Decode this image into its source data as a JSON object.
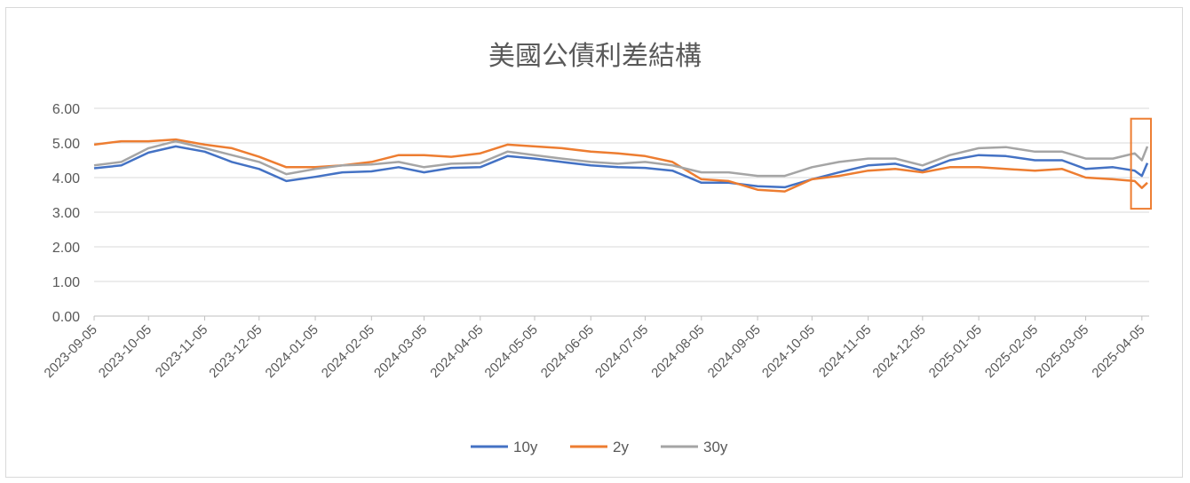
{
  "chart_data": {
    "type": "line",
    "title": "美國公債利差結構",
    "xlabel": "",
    "ylabel": "",
    "ylim": [
      0,
      6
    ],
    "yticks": [
      "0.00",
      "1.00",
      "2.00",
      "3.00",
      "4.00",
      "5.00",
      "6.00"
    ],
    "grid": "horizontal",
    "legend_position": "bottom",
    "x_tick_labels": [
      "2023-09-05",
      "2023-10-05",
      "2023-11-05",
      "2023-12-05",
      "2024-01-05",
      "2024-02-05",
      "2024-03-05",
      "2024-04-05",
      "2024-05-05",
      "2024-06-05",
      "2024-07-05",
      "2024-08-05",
      "2024-09-05",
      "2024-10-05",
      "2024-11-05",
      "2024-12-05",
      "2025-01-05",
      "2025-02-05",
      "2025-03-05",
      "2025-04-05"
    ],
    "x": [
      "2023-09-05",
      "2023-09-20",
      "2023-10-05",
      "2023-10-20",
      "2023-11-05",
      "2023-11-20",
      "2023-12-05",
      "2023-12-20",
      "2024-01-05",
      "2024-01-20",
      "2024-02-05",
      "2024-02-20",
      "2024-03-05",
      "2024-03-20",
      "2024-04-05",
      "2024-04-20",
      "2024-05-05",
      "2024-05-20",
      "2024-06-05",
      "2024-06-20",
      "2024-07-05",
      "2024-07-20",
      "2024-08-05",
      "2024-08-20",
      "2024-09-05",
      "2024-09-20",
      "2024-10-05",
      "2024-10-20",
      "2024-11-05",
      "2024-11-20",
      "2024-12-05",
      "2024-12-20",
      "2025-01-05",
      "2025-01-20",
      "2025-02-05",
      "2025-02-20",
      "2025-03-05",
      "2025-03-20",
      "2025-04-01",
      "2025-04-05",
      "2025-04-08"
    ],
    "series": [
      {
        "name": "10y",
        "color": "#4472c4",
        "values": [
          4.27,
          4.35,
          4.72,
          4.9,
          4.75,
          4.45,
          4.25,
          3.9,
          4.02,
          4.15,
          4.18,
          4.3,
          4.15,
          4.28,
          4.3,
          4.62,
          4.55,
          4.45,
          4.35,
          4.3,
          4.28,
          4.2,
          3.85,
          3.85,
          3.75,
          3.72,
          3.95,
          4.15,
          4.35,
          4.4,
          4.2,
          4.5,
          4.65,
          4.62,
          4.5,
          4.5,
          4.25,
          4.3,
          4.2,
          4.05,
          4.42
        ]
      },
      {
        "name": "2y",
        "color": "#ed7d31",
        "values": [
          4.95,
          5.05,
          5.05,
          5.1,
          4.95,
          4.85,
          4.6,
          4.3,
          4.3,
          4.35,
          4.45,
          4.65,
          4.65,
          4.6,
          4.7,
          4.95,
          4.9,
          4.85,
          4.75,
          4.7,
          4.62,
          4.45,
          3.95,
          3.9,
          3.65,
          3.6,
          3.95,
          4.05,
          4.2,
          4.25,
          4.15,
          4.3,
          4.3,
          4.25,
          4.2,
          4.25,
          4.0,
          3.95,
          3.9,
          3.7,
          3.85
        ]
      },
      {
        "name": "30y",
        "color": "#a5a5a5",
        "values": [
          4.35,
          4.45,
          4.85,
          5.05,
          4.85,
          4.65,
          4.45,
          4.1,
          4.25,
          4.35,
          4.38,
          4.45,
          4.3,
          4.4,
          4.42,
          4.75,
          4.65,
          4.55,
          4.45,
          4.4,
          4.45,
          4.35,
          4.15,
          4.15,
          4.05,
          4.05,
          4.3,
          4.45,
          4.55,
          4.55,
          4.35,
          4.65,
          4.85,
          4.88,
          4.75,
          4.75,
          4.55,
          4.55,
          4.7,
          4.5,
          4.9
        ]
      }
    ],
    "annotation": {
      "type": "highlight-box",
      "color": "#ed7d31",
      "x_from": "2025-03-30",
      "x_to": "2025-04-10",
      "y_from": 3.1,
      "y_to": 5.7
    }
  }
}
